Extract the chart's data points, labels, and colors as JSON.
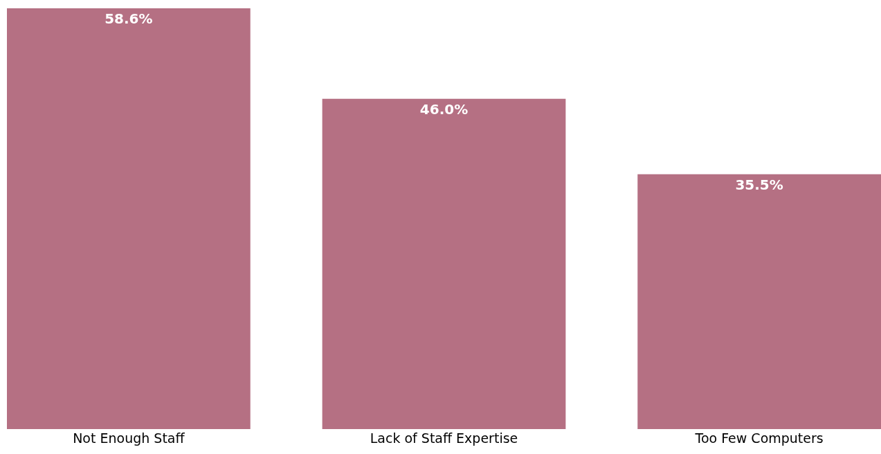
{
  "chart_data": {
    "type": "bar",
    "categories": [
      "Not Enough Staff",
      "Lack of Staff Expertise",
      "Too Few Computers"
    ],
    "values": [
      58.6,
      46.0,
      35.5
    ],
    "value_labels": [
      "58.6%",
      "46.0%",
      "35.5%"
    ],
    "color": "#b57083"
  }
}
